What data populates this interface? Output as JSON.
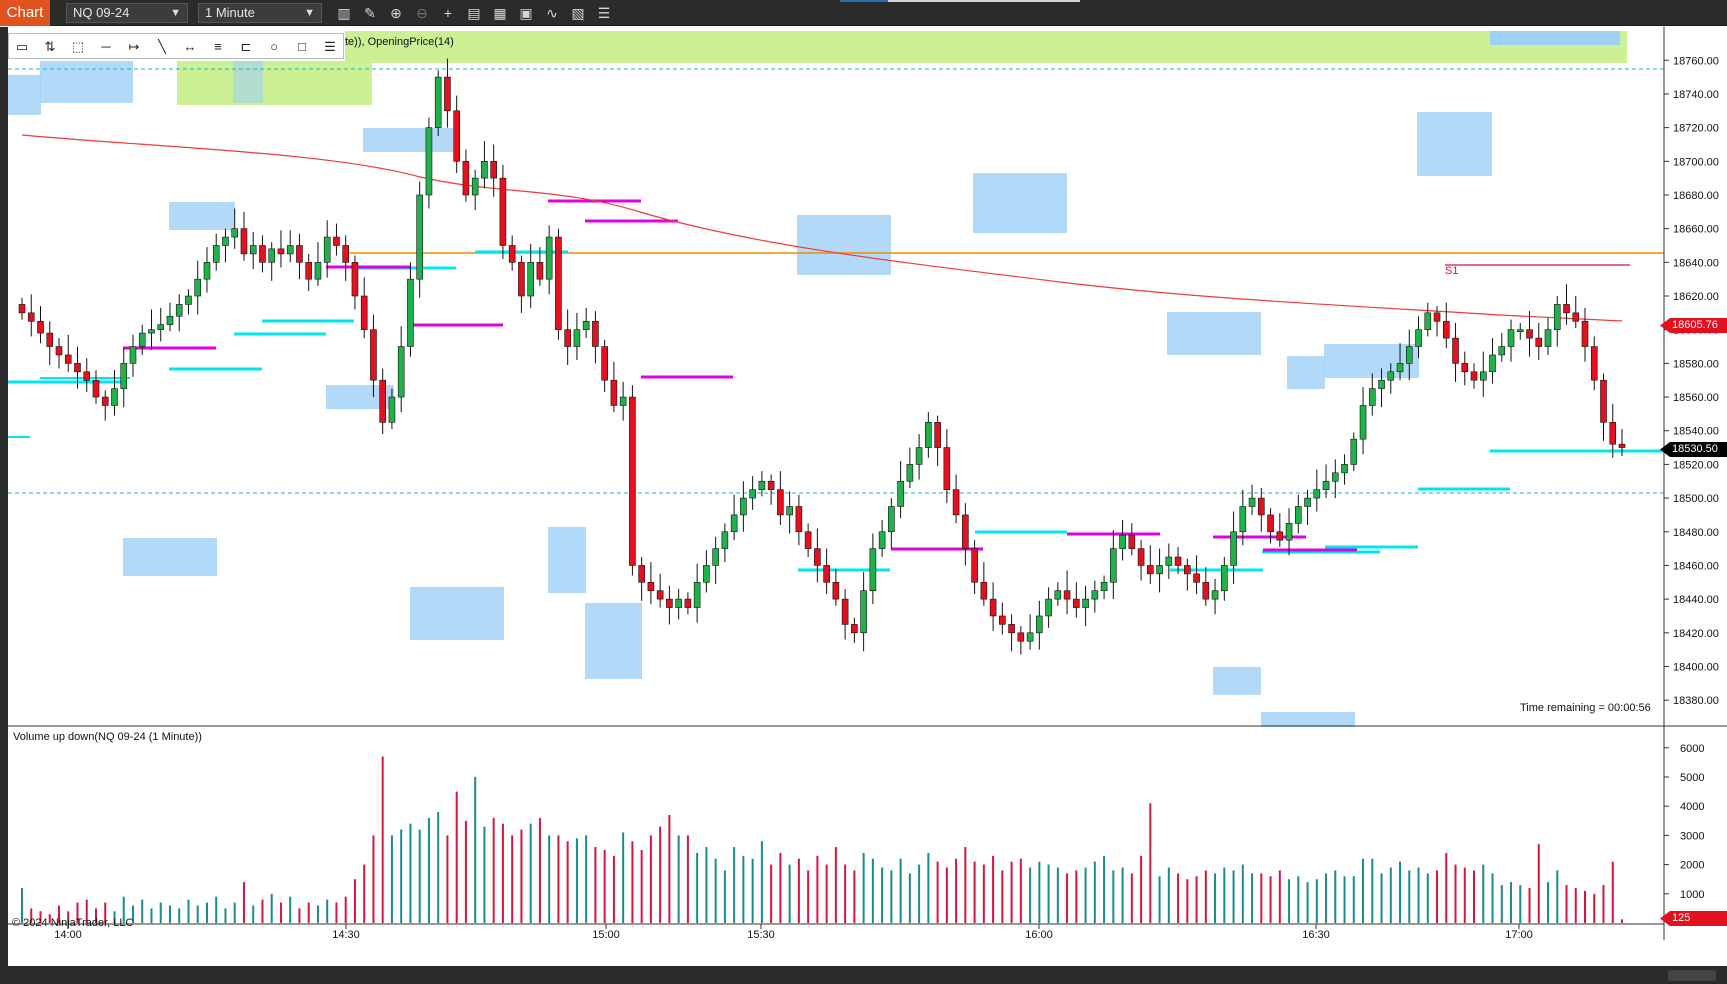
{
  "toolbar": {
    "chart_tab": "Chart",
    "instrument": "NQ 09-24",
    "interval": "1 Minute"
  },
  "indicator_label": "te)), OpeningPrice(14)",
  "price_axis": {
    "labels": [
      "18760.00",
      "18740.00",
      "18720.00",
      "18700.00",
      "18680.00",
      "18660.00",
      "18640.00",
      "18620.00",
      "18600.00",
      "18580.00",
      "18560.00",
      "18540.00",
      "18520.00",
      "18500.00",
      "18480.00",
      "18460.00",
      "18440.00",
      "18420.00",
      "18400.00",
      "18380.00"
    ],
    "current_price": "18530.50",
    "ma_price": "18605.76"
  },
  "time_axis": [
    "14:00",
    "14:30",
    "15:00",
    "15:30",
    "16:00",
    "16:30",
    "17:00"
  ],
  "pivot_label": "S1",
  "time_remaining": "Time remaining = 00:00:56",
  "volume_panel": {
    "title": "Volume up down(NQ 09-24 (1 Minute))",
    "labels": [
      "6000",
      "5000",
      "4000",
      "3000",
      "2000",
      "1000"
    ],
    "current_volume": "125"
  },
  "copyright": "© 2024 NinjaTrader, LLC",
  "colors": {
    "up": "#21b14b",
    "down": "#e3101e",
    "vol_up": "#1a8a8a",
    "vol_down": "#d4173c",
    "ma": "#ee3b3b",
    "orange_line": "#f08c00",
    "cyan": "#00e5ee",
    "magenta": "#e000e0",
    "accent": "#e0531f"
  },
  "chart_data": {
    "type": "candlestick",
    "y_range": [
      18370,
      18775
    ],
    "volume_range": [
      0,
      6300
    ],
    "close_series": [
      18610,
      18605,
      18598,
      18590,
      18585,
      18580,
      18575,
      18570,
      18560,
      18555,
      18565,
      18580,
      18590,
      18598,
      18600,
      18603,
      18608,
      18615,
      18620,
      18630,
      18640,
      18650,
      18655,
      18660,
      18645,
      18650,
      18640,
      18648,
      18645,
      18650,
      18640,
      18630,
      18640,
      18655,
      18650,
      18640,
      18620,
      18600,
      18570,
      18545,
      18560,
      18590,
      18630,
      18680,
      18720,
      18750,
      18730,
      18700,
      18680,
      18690,
      18700,
      18690,
      18650,
      18640,
      18620,
      18640,
      18630,
      18655,
      18600,
      18590,
      18600,
      18605,
      18590,
      18570,
      18555,
      18560,
      18460,
      18450,
      18445,
      18440,
      18435,
      18440,
      18435,
      18450,
      18460,
      18470,
      18480,
      18490,
      18500,
      18505,
      18510,
      18505,
      18490,
      18495,
      18480,
      18470,
      18460,
      18450,
      18440,
      18425,
      18420,
      18445,
      18470,
      18480,
      18495,
      18510,
      18520,
      18530,
      18545,
      18530,
      18505,
      18490,
      18470,
      18450,
      18440,
      18430,
      18425,
      18420,
      18415,
      18420,
      18430,
      18440,
      18445,
      18440,
      18435,
      18440,
      18445,
      18450,
      18470,
      18478,
      18470,
      18460,
      18455,
      18460,
      18465,
      18460,
      18455,
      18450,
      18440,
      18445,
      18460,
      18480,
      18495,
      18500,
      18490,
      18480,
      18475,
      18485,
      18495,
      18500,
      18505,
      18510,
      18515,
      18520,
      18535,
      18555,
      18565,
      18570,
      18575,
      18580,
      18590,
      18600,
      18610,
      18605,
      18595,
      18580,
      18575,
      18570,
      18575,
      18585,
      18590,
      18600,
      18600,
      18595,
      18590,
      18600,
      18615,
      18610,
      18605,
      18590,
      18570,
      18545,
      18532,
      18530
    ],
    "volume_series": [
      1200,
      500,
      400,
      300,
      600,
      400,
      700,
      800,
      500,
      700,
      400,
      900,
      600,
      800,
      500,
      700,
      600,
      500,
      800,
      600,
      700,
      900,
      500,
      700,
      1400,
      600,
      800,
      1000,
      700,
      900,
      500,
      700,
      600,
      800,
      700,
      900,
      1500,
      2000,
      3000,
      5700,
      3000,
      3200,
      3400,
      3200,
      3600,
      3800,
      3000,
      4500,
      3500,
      5000,
      3300,
      3600,
      3400,
      3000,
      3200,
      3400,
      3600,
      3000,
      3000,
      2800,
      2900,
      3000,
      2600,
      2500,
      2300,
      3100,
      2800,
      2500,
      3000,
      3300,
      3700,
      3000,
      3000,
      2400,
      2600,
      2200,
      1800,
      2600,
      2300,
      2200,
      2800,
      2000,
      2400,
      2000,
      2200,
      1800,
      2300,
      2000,
      2600,
      2000,
      1800,
      2400,
      2200,
      1900,
      1800,
      2200,
      1700,
      2000,
      2400,
      2100,
      1900,
      2200,
      2600,
      2100,
      2000,
      2300,
      1800,
      2100,
      2200,
      1900,
      2100,
      2000,
      1900,
      1700,
      1800,
      1900,
      2100,
      2300,
      1800,
      1900,
      1700,
      2300,
      4100,
      1600,
      1900,
      1700,
      1500,
      1600,
      1800,
      1700,
      1900,
      1800,
      2000,
      1700,
      1700,
      1600,
      1800,
      1500,
      1600,
      1400,
      1500,
      1700,
      1800,
      1600,
      1600,
      2200,
      2200,
      1700,
      1900,
      2100,
      1800,
      1900,
      1700,
      1800,
      2400,
      2000,
      1900,
      1800,
      2000,
      1700,
      1300,
      1400,
      1300,
      1200,
      2700,
      1400,
      1800,
      1300,
      1200,
      1100,
      1000,
      1300,
      2100,
      125
    ]
  }
}
